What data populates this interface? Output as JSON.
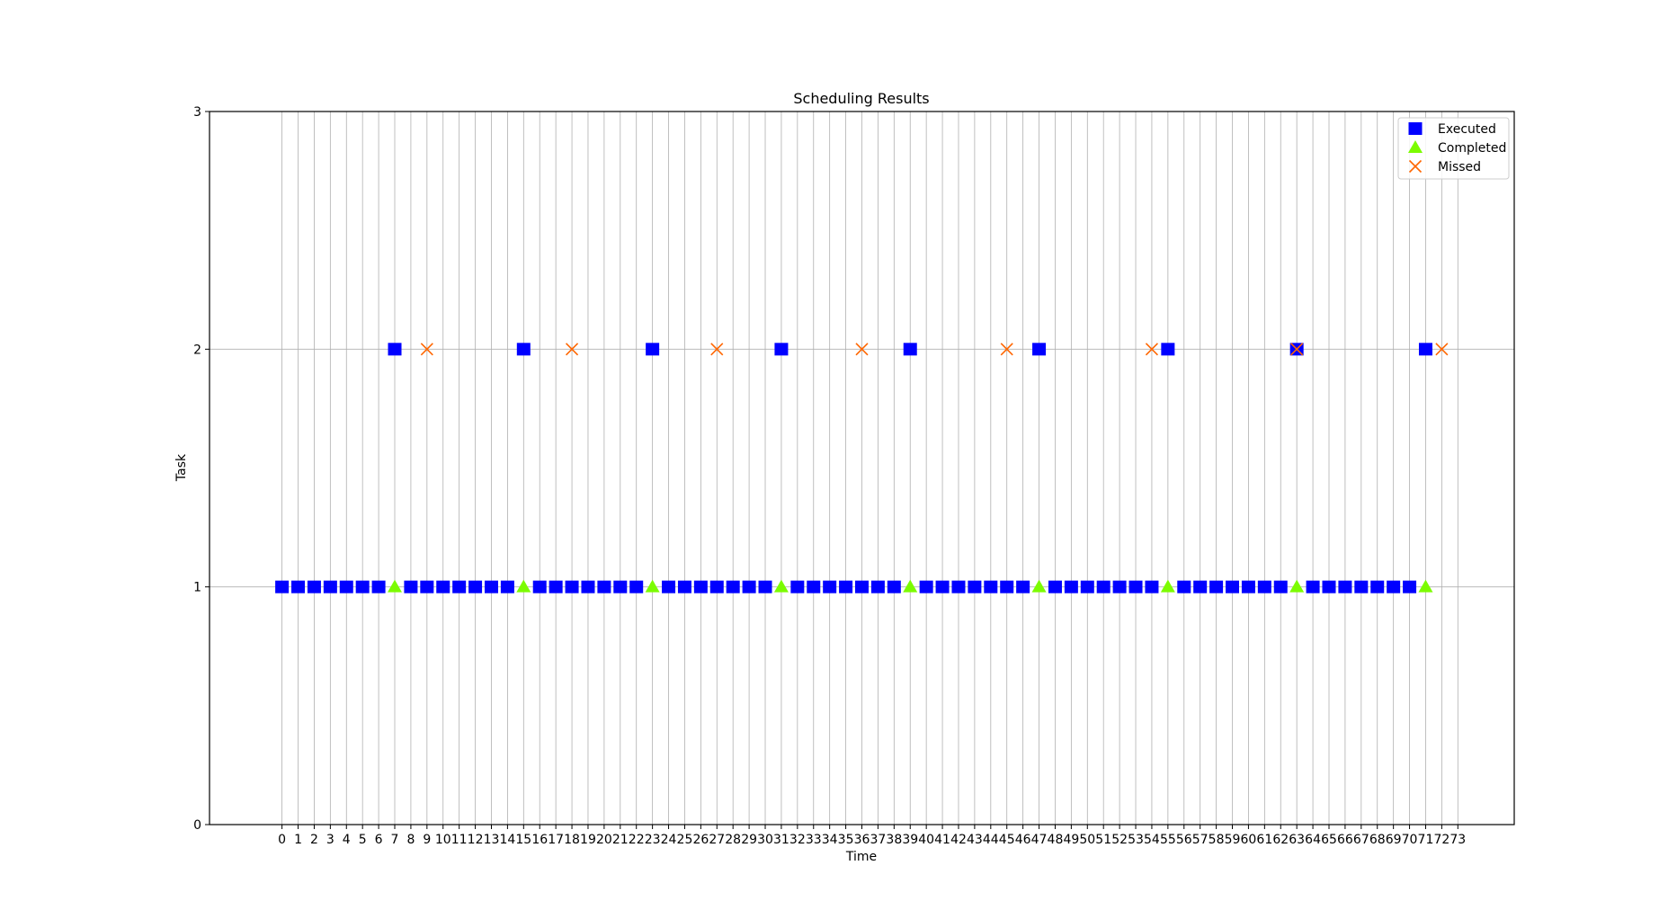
{
  "chart_data": {
    "type": "scatter",
    "title": "Scheduling Results",
    "xlabel": "Time",
    "ylabel": "Task",
    "xlim": [
      -4.5,
      76.5
    ],
    "ylim": [
      0,
      3
    ],
    "x_ticks": [
      0,
      1,
      2,
      3,
      4,
      5,
      6,
      7,
      8,
      9,
      10,
      11,
      12,
      13,
      14,
      15,
      16,
      17,
      18,
      19,
      20,
      21,
      22,
      23,
      24,
      25,
      26,
      27,
      28,
      29,
      30,
      31,
      32,
      33,
      34,
      35,
      36,
      37,
      38,
      39,
      40,
      41,
      42,
      43,
      44,
      45,
      46,
      47,
      48,
      49,
      50,
      51,
      52,
      53,
      54,
      55,
      56,
      57,
      58,
      59,
      60,
      61,
      62,
      63,
      64,
      65,
      66,
      67,
      68,
      69,
      70,
      71,
      72,
      73
    ],
    "y_ticks": [
      0,
      1,
      2,
      3
    ],
    "grid": true,
    "legend_position": "upper right",
    "series": [
      {
        "name": "Executed",
        "marker": "square",
        "color": "#0000ff",
        "points": [
          {
            "x": 0,
            "y": 1
          },
          {
            "x": 1,
            "y": 1
          },
          {
            "x": 2,
            "y": 1
          },
          {
            "x": 3,
            "y": 1
          },
          {
            "x": 4,
            "y": 1
          },
          {
            "x": 5,
            "y": 1
          },
          {
            "x": 6,
            "y": 1
          },
          {
            "x": 7,
            "y": 2
          },
          {
            "x": 8,
            "y": 1
          },
          {
            "x": 9,
            "y": 1
          },
          {
            "x": 10,
            "y": 1
          },
          {
            "x": 11,
            "y": 1
          },
          {
            "x": 12,
            "y": 1
          },
          {
            "x": 13,
            "y": 1
          },
          {
            "x": 14,
            "y": 1
          },
          {
            "x": 15,
            "y": 2
          },
          {
            "x": 16,
            "y": 1
          },
          {
            "x": 17,
            "y": 1
          },
          {
            "x": 18,
            "y": 1
          },
          {
            "x": 19,
            "y": 1
          },
          {
            "x": 20,
            "y": 1
          },
          {
            "x": 21,
            "y": 1
          },
          {
            "x": 22,
            "y": 1
          },
          {
            "x": 23,
            "y": 2
          },
          {
            "x": 24,
            "y": 1
          },
          {
            "x": 25,
            "y": 1
          },
          {
            "x": 26,
            "y": 1
          },
          {
            "x": 27,
            "y": 1
          },
          {
            "x": 28,
            "y": 1
          },
          {
            "x": 29,
            "y": 1
          },
          {
            "x": 30,
            "y": 1
          },
          {
            "x": 31,
            "y": 2
          },
          {
            "x": 32,
            "y": 1
          },
          {
            "x": 33,
            "y": 1
          },
          {
            "x": 34,
            "y": 1
          },
          {
            "x": 35,
            "y": 1
          },
          {
            "x": 36,
            "y": 1
          },
          {
            "x": 37,
            "y": 1
          },
          {
            "x": 38,
            "y": 1
          },
          {
            "x": 39,
            "y": 2
          },
          {
            "x": 40,
            "y": 1
          },
          {
            "x": 41,
            "y": 1
          },
          {
            "x": 42,
            "y": 1
          },
          {
            "x": 43,
            "y": 1
          },
          {
            "x": 44,
            "y": 1
          },
          {
            "x": 45,
            "y": 1
          },
          {
            "x": 46,
            "y": 1
          },
          {
            "x": 47,
            "y": 2
          },
          {
            "x": 48,
            "y": 1
          },
          {
            "x": 49,
            "y": 1
          },
          {
            "x": 50,
            "y": 1
          },
          {
            "x": 51,
            "y": 1
          },
          {
            "x": 52,
            "y": 1
          },
          {
            "x": 53,
            "y": 1
          },
          {
            "x": 54,
            "y": 1
          },
          {
            "x": 55,
            "y": 2
          },
          {
            "x": 56,
            "y": 1
          },
          {
            "x": 57,
            "y": 1
          },
          {
            "x": 58,
            "y": 1
          },
          {
            "x": 59,
            "y": 1
          },
          {
            "x": 60,
            "y": 1
          },
          {
            "x": 61,
            "y": 1
          },
          {
            "x": 62,
            "y": 1
          },
          {
            "x": 63,
            "y": 2
          },
          {
            "x": 64,
            "y": 1
          },
          {
            "x": 65,
            "y": 1
          },
          {
            "x": 66,
            "y": 1
          },
          {
            "x": 67,
            "y": 1
          },
          {
            "x": 68,
            "y": 1
          },
          {
            "x": 69,
            "y": 1
          },
          {
            "x": 70,
            "y": 1
          },
          {
            "x": 71,
            "y": 2
          }
        ]
      },
      {
        "name": "Completed",
        "marker": "triangle",
        "color": "#7cfc00",
        "points": [
          {
            "x": 7,
            "y": 1
          },
          {
            "x": 15,
            "y": 1
          },
          {
            "x": 23,
            "y": 1
          },
          {
            "x": 31,
            "y": 1
          },
          {
            "x": 39,
            "y": 1
          },
          {
            "x": 47,
            "y": 1
          },
          {
            "x": 55,
            "y": 1
          },
          {
            "x": 63,
            "y": 1
          },
          {
            "x": 71,
            "y": 1
          }
        ]
      },
      {
        "name": "Missed",
        "marker": "x",
        "color": "#ff6600",
        "points": [
          {
            "x": 9,
            "y": 2
          },
          {
            "x": 18,
            "y": 2
          },
          {
            "x": 27,
            "y": 2
          },
          {
            "x": 36,
            "y": 2
          },
          {
            "x": 45,
            "y": 2
          },
          {
            "x": 54,
            "y": 2
          },
          {
            "x": 63,
            "y": 2
          },
          {
            "x": 72,
            "y": 2
          }
        ]
      }
    ]
  }
}
